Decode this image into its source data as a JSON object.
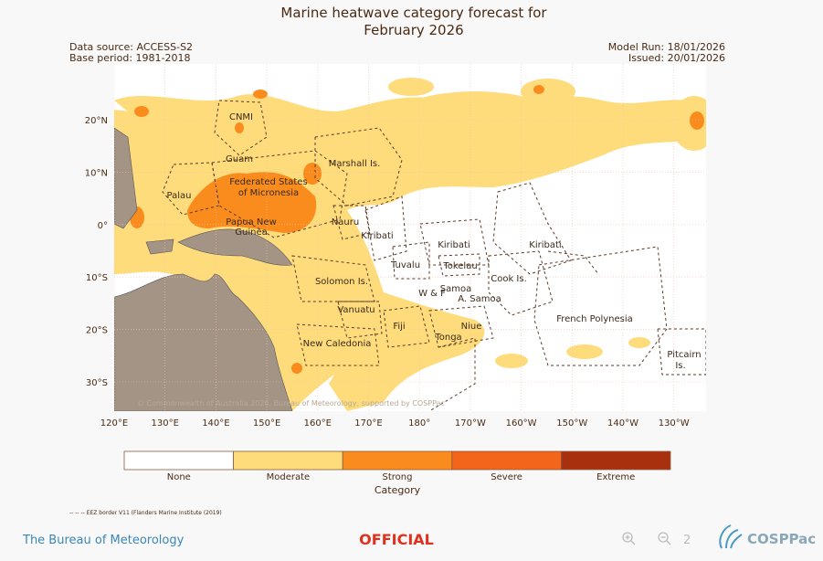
{
  "header": {
    "title_lines": [
      "Marine heatwave category forecast for",
      "February 2026"
    ],
    "data_source": "Data source: ACCESS-S2",
    "base_period": "Base period: 1981-2018",
    "model_run": "Model Run: 18/01/2026",
    "issued": "Issued: 20/01/2026"
  },
  "map": {
    "lat_labels": [
      "20°N",
      "10°N",
      "0°",
      "10°S",
      "20°S",
      "30°S"
    ],
    "lon_labels": [
      "120°E",
      "130°E",
      "140°E",
      "150°E",
      "160°E",
      "170°E",
      "180°",
      "170°W",
      "160°W",
      "150°W",
      "140°W",
      "130°W"
    ],
    "regions": [
      {
        "lines": [
          "CNMI"
        ]
      },
      {
        "lines": [
          "Guam"
        ]
      },
      {
        "lines": [
          "Marshall Is."
        ]
      },
      {
        "lines": [
          "Palau"
        ]
      },
      {
        "lines": [
          "Federated States",
          "of Micronesia"
        ]
      },
      {
        "lines": [
          "Nauru"
        ]
      },
      {
        "lines": [
          "Papua New",
          "Guinea"
        ]
      },
      {
        "lines": [
          "Kiribati"
        ]
      },
      {
        "lines": [
          "Kiribati"
        ]
      },
      {
        "lines": [
          "Kiribati"
        ]
      },
      {
        "lines": [
          "Tuvalu"
        ]
      },
      {
        "lines": [
          "Tokelau"
        ]
      },
      {
        "lines": [
          "Solomon Is."
        ]
      },
      {
        "lines": [
          "Cook Is."
        ]
      },
      {
        "lines": [
          "Samoa"
        ]
      },
      {
        "lines": [
          "W & F"
        ]
      },
      {
        "lines": [
          "A. Samoa"
        ]
      },
      {
        "lines": [
          "Vanuatu"
        ]
      },
      {
        "lines": [
          "Fiji"
        ]
      },
      {
        "lines": [
          "Niue"
        ]
      },
      {
        "lines": [
          "French Polynesia"
        ]
      },
      {
        "lines": [
          "Tonga"
        ]
      },
      {
        "lines": [
          "New Caledonia"
        ]
      },
      {
        "lines": [
          "Pitcairn",
          "Is."
        ]
      }
    ],
    "copyright": "© Commonwealth of Australia 2026, Bureau of Meteorology, supported by COSPPac"
  },
  "legend": {
    "title": "Category",
    "categories": [
      "None",
      "Moderate",
      "Strong",
      "Severe",
      "Extreme"
    ]
  },
  "eez_note": "-- -- -- EEZ border V11 (Flanders Marine Institute (2019)",
  "footer": {
    "bureau": "The Bureau of Meteorology",
    "classification": "OFFICIAL",
    "page": "2",
    "logo": "COSPPac"
  }
}
